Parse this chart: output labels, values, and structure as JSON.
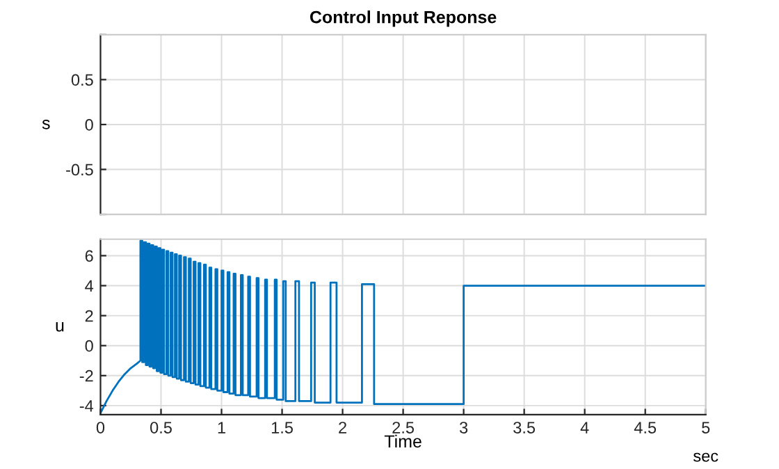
{
  "chart_data": [
    {
      "type": "line",
      "title": "Control Input Reponse",
      "ylabel": "s",
      "xlim": [
        0,
        5
      ],
      "xticks": [
        0,
        0.5,
        1,
        1.5,
        2,
        2.5,
        3,
        3.5,
        4,
        4.5,
        5
      ],
      "ylim": [
        -1,
        1
      ],
      "yticks": [
        {
          "value": -1,
          "label": null
        },
        -0.5,
        0,
        0.5,
        {
          "value": 1,
          "label": null
        }
      ],
      "tick_labels": "y",
      "grid": true
    },
    {
      "type": "line",
      "ylabel": "u",
      "xlabel": "Time",
      "annotations": [
        "sec"
      ],
      "xlim": [
        0,
        5
      ],
      "xticks": [
        0,
        0.5,
        1,
        1.5,
        2,
        2.5,
        3,
        3.5,
        4,
        4.5,
        5
      ],
      "ylim": [
        -4.6,
        7.1
      ],
      "yticks": [
        -4,
        -2,
        0,
        2,
        4,
        6
      ],
      "grid": true,
      "series": [
        {
          "color": "#0072bd",
          "x": [
            0,
            0.05,
            0.1,
            0.15,
            0.2,
            0.25,
            0.3,
            0.33,
            0.33,
            0.345,
            0.345,
            0.36,
            0.36,
            0.375,
            0.375,
            0.39,
            0.39,
            0.405,
            0.405,
            0.42,
            0.42,
            0.435,
            0.435,
            0.45,
            0.45,
            0.465,
            0.465,
            0.48,
            0.48,
            0.495,
            0.495,
            0.51,
            0.51,
            0.525,
            0.525,
            0.545,
            0.545,
            0.56,
            0.56,
            0.58,
            0.58,
            0.595,
            0.595,
            0.615,
            0.615,
            0.63,
            0.63,
            0.65,
            0.65,
            0.665,
            0.665,
            0.69,
            0.69,
            0.705,
            0.705,
            0.73,
            0.73,
            0.745,
            0.745,
            0.77,
            0.77,
            0.785,
            0.785,
            0.81,
            0.81,
            0.825,
            0.825,
            0.855,
            0.855,
            0.87,
            0.87,
            0.9,
            0.9,
            0.915,
            0.915,
            0.95,
            0.95,
            0.965,
            0.965,
            1.0,
            1.0,
            1.015,
            1.015,
            1.05,
            1.05,
            1.065,
            1.065,
            1.1,
            1.1,
            1.115,
            1.115,
            1.16,
            1.16,
            1.175,
            1.175,
            1.22,
            1.22,
            1.235,
            1.235,
            1.29,
            1.29,
            1.305,
            1.305,
            1.36,
            1.36,
            1.375,
            1.375,
            1.44,
            1.44,
            1.455,
            1.455,
            1.51,
            1.51,
            1.53,
            1.53,
            1.61,
            1.61,
            1.64,
            1.64,
            1.74,
            1.74,
            1.77,
            1.77,
            1.9,
            1.9,
            1.95,
            1.95,
            2.16,
            2.16,
            2.26,
            2.26,
            3.0,
            3.0,
            5.0
          ],
          "values": [
            -4.5,
            -3.7,
            -3.0,
            -2.4,
            -1.9,
            -1.5,
            -1.2,
            -1.0,
            7.0,
            7.0,
            -1.1,
            -1.1,
            6.9,
            6.9,
            -1.3,
            -1.3,
            6.8,
            6.8,
            -1.4,
            -1.4,
            6.7,
            6.7,
            -1.5,
            -1.5,
            6.6,
            6.6,
            -1.7,
            -1.7,
            6.5,
            6.5,
            -1.8,
            -1.8,
            6.4,
            6.4,
            -1.9,
            -1.9,
            6.3,
            6.3,
            -2.0,
            -2.0,
            6.2,
            6.2,
            -2.1,
            -2.1,
            6.1,
            6.1,
            -2.2,
            -2.2,
            6.0,
            6.0,
            -2.3,
            -2.3,
            5.9,
            5.9,
            -2.4,
            -2.4,
            5.8,
            5.8,
            -2.5,
            -2.5,
            5.6,
            5.6,
            -2.6,
            -2.6,
            5.5,
            5.5,
            -2.7,
            -2.7,
            5.4,
            5.4,
            -2.8,
            -2.8,
            5.2,
            5.2,
            -2.9,
            -2.9,
            5.1,
            5.1,
            -3.0,
            -3.0,
            5.0,
            5.0,
            -3.1,
            -3.1,
            4.9,
            4.9,
            -3.2,
            -3.2,
            4.8,
            4.8,
            -3.3,
            -3.3,
            4.7,
            4.7,
            -3.3,
            -3.3,
            4.6,
            4.6,
            -3.4,
            -3.4,
            4.5,
            4.5,
            -3.5,
            -3.5,
            4.4,
            4.4,
            -3.5,
            -3.5,
            4.4,
            4.4,
            -3.6,
            -3.6,
            4.3,
            4.3,
            -3.7,
            -3.7,
            4.3,
            4.3,
            -3.7,
            -3.7,
            4.2,
            4.2,
            -3.8,
            -3.8,
            4.2,
            4.2,
            -3.8,
            -3.8,
            4.1,
            4.1,
            -3.9,
            -3.9,
            4.0,
            4.0
          ]
        }
      ]
    }
  ]
}
